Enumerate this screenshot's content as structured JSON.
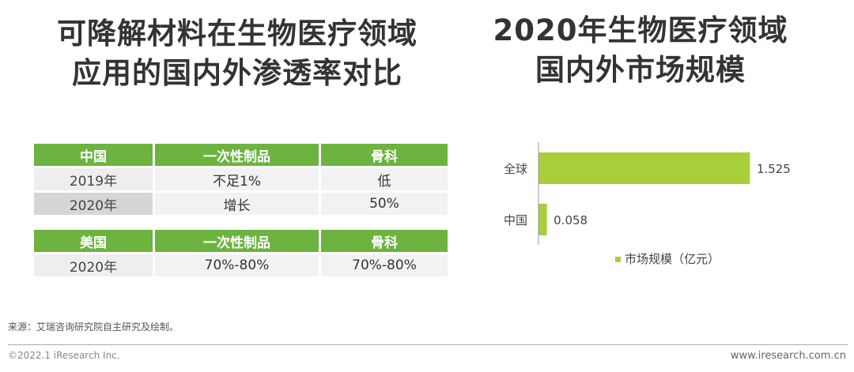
{
  "left_title": {
    "line1": "可降解材料在生物医疗领域",
    "line2": "应用的国内外渗透率对比"
  },
  "right_title": {
    "line1": "2020年生物医疗领域",
    "line2": "国内外市场规模"
  },
  "china_table": {
    "headers": [
      "中国",
      "一次性制品",
      "骨科"
    ],
    "rows": [
      [
        "2019年",
        "不足1%",
        "低"
      ],
      [
        "2020年",
        "增长",
        "50%"
      ]
    ]
  },
  "usa_table": {
    "headers": [
      "美国",
      "一次性制品",
      "骨科"
    ],
    "rows": [
      [
        "2020年",
        "70%-80%",
        "70%-80%"
      ]
    ]
  },
  "chart_data": {
    "type": "bar",
    "orientation": "horizontal",
    "title": "",
    "categories": [
      "全球",
      "中国"
    ],
    "series": [
      {
        "name": "市场规模（亿元）",
        "values": [
          1.525,
          0.058
        ]
      }
    ],
    "value_labels": [
      "1.525",
      "0.058"
    ],
    "legend": "bottom",
    "grid": false,
    "xlim": [
      0,
      1.6
    ],
    "color": "#a8cf3a"
  },
  "source": "来源：艾瑞咨询研究院自主研究及绘制。",
  "copyright": "©2022.1 iResearch Inc.",
  "website": "www.iresearch.com.cn",
  "colors": {
    "header_green": "#6cb33f",
    "bar_green": "#a8cf3a",
    "title": "#333333"
  }
}
